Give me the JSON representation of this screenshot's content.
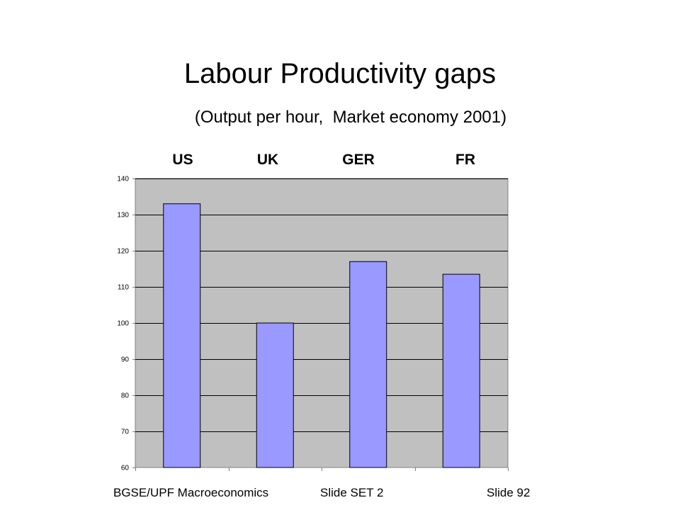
{
  "slide": {
    "title": "Labour Productivity gaps",
    "subtitle": "(Output per hour,  Market economy 2001)"
  },
  "chart_data": {
    "type": "bar",
    "categories": [
      "US",
      "UK",
      "GER",
      "FR"
    ],
    "values": [
      133,
      100,
      117,
      113.5
    ],
    "ylim": [
      60,
      140
    ],
    "yticks": [
      60,
      70,
      80,
      90,
      100,
      110,
      120,
      130,
      140
    ],
    "ytick_labels": [
      "60",
      "70",
      "80",
      "90",
      "100",
      "110",
      "120",
      "130",
      "140"
    ],
    "category_label_position": "top",
    "grid": true,
    "legend": "none",
    "colors": {
      "bar_fill": "#9999FF",
      "plot_background": "#C0C0C0",
      "gridline": "#000000",
      "axis": "#808080"
    }
  },
  "footer": {
    "left": "BGSE/UPF Macroeconomics",
    "center": "Slide SET 2",
    "right": "Slide 92"
  }
}
